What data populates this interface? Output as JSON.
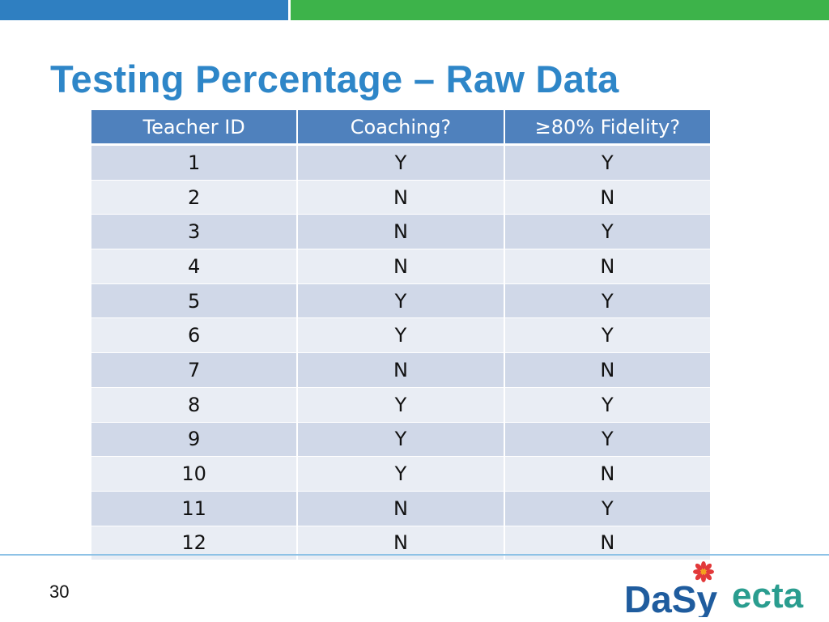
{
  "slide": {
    "title": "Testing Percentage – Raw Data",
    "page_number": "30"
  },
  "table": {
    "headers": [
      "Teacher ID",
      "Coaching?",
      "≥80% Fidelity?"
    ],
    "rows": [
      [
        "1",
        "Y",
        "Y"
      ],
      [
        "2",
        "N",
        "N"
      ],
      [
        "3",
        "N",
        "Y"
      ],
      [
        "4",
        "N",
        "N"
      ],
      [
        "5",
        "Y",
        "Y"
      ],
      [
        "6",
        "Y",
        "Y"
      ],
      [
        "7",
        "N",
        "N"
      ],
      [
        "8",
        "Y",
        "Y"
      ],
      [
        "9",
        "Y",
        "Y"
      ],
      [
        "10",
        "Y",
        "N"
      ],
      [
        "11",
        "N",
        "Y"
      ],
      [
        "12",
        "N",
        "N"
      ]
    ]
  },
  "logos": {
    "dasy": "DaSy",
    "ecta": "ecta"
  },
  "colors": {
    "top_bar_blue": "#2f7fc1",
    "top_bar_green": "#3db34a",
    "title": "#2e86c8",
    "table_header": "#4f81bd",
    "row_dark": "#d0d8e8",
    "row_light": "#e9edf4",
    "dasy_blue": "#1f5c9e",
    "dasy_flower": "#e2393a",
    "ecta_teal": "#2a9d8f"
  }
}
